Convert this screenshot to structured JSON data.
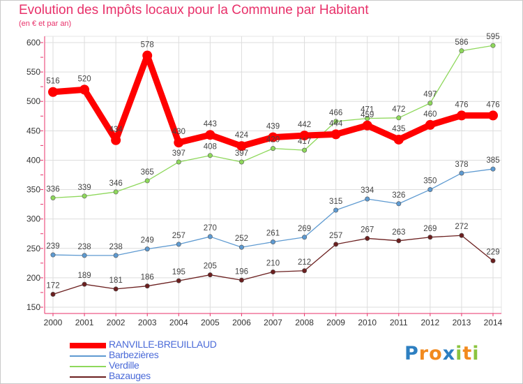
{
  "title": "Evolution des Impôts locaux pour la Commune par Habitant",
  "subtitle": "(en € et par an)",
  "logo": {
    "text": "Proxiti",
    "letters": [
      "P",
      "r",
      "o",
      "x",
      "i",
      "t",
      "i"
    ],
    "colors": [
      "#2d7fc1",
      "#f28a1e",
      "#f28a1e",
      "#2d7fc1",
      "#8bc43f",
      "#f28a1e",
      "#8bc43f"
    ]
  },
  "colors": {
    "title": "#e8316a",
    "axis": "#e8316a",
    "grid": "#dddddd",
    "legend_text": "#4a6ad8"
  },
  "chart_data": {
    "type": "line",
    "title": "Evolution des Impôts locaux pour la Commune par Habitant",
    "subtitle": "(en € et par an)",
    "xlabel": "",
    "ylabel": "",
    "ylim": [
      150,
      600
    ],
    "yticks": [
      150,
      200,
      250,
      300,
      350,
      400,
      450,
      500,
      550,
      600
    ],
    "grid": true,
    "legend_position": "bottom-left",
    "categories": [
      "2000",
      "2001",
      "2002",
      "2003",
      "2004",
      "2005",
      "2006",
      "2007",
      "2008",
      "2009",
      "2010",
      "2011",
      "2012",
      "2013",
      "2014"
    ],
    "series": [
      {
        "name": "RANVILLE-BREUILLAUD",
        "color": "#ff0000",
        "values": [
          516,
          520,
          434,
          578,
          430,
          443,
          424,
          439,
          442,
          444,
          459,
          435,
          460,
          476,
          476
        ]
      },
      {
        "name": "Barbezières",
        "color": "#5e9ad1",
        "values": [
          239,
          238,
          238,
          249,
          257,
          270,
          252,
          261,
          269,
          315,
          334,
          326,
          350,
          378,
          385
        ]
      },
      {
        "name": "Verdille",
        "color": "#8ed85b",
        "values": [
          336,
          339,
          346,
          365,
          397,
          408,
          397,
          420,
          417,
          466,
          471,
          472,
          497,
          586,
          595
        ]
      },
      {
        "name": "Bazauges",
        "color": "#6b1f1f",
        "values": [
          172,
          189,
          181,
          186,
          195,
          205,
          196,
          210,
          212,
          257,
          267,
          263,
          269,
          272,
          229
        ]
      }
    ]
  }
}
